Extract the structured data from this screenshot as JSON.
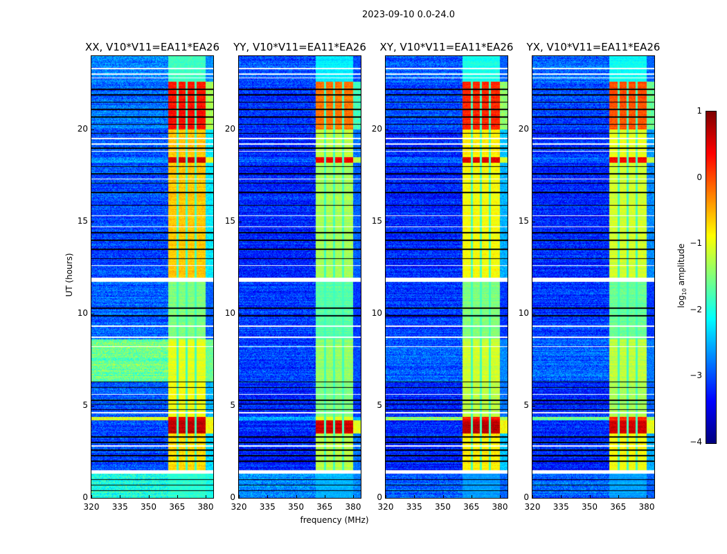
{
  "chart_data": {
    "type": "heatmap",
    "title": "2023-09-10 0.0-24.0",
    "xlabel": "frequency (MHz)",
    "ylabel": "UT (hours)",
    "xlim": [
      320,
      384
    ],
    "ylim": [
      0,
      24
    ],
    "xticks": [
      "320",
      "335",
      "350",
      "365",
      "380"
    ],
    "xtick_values": [
      320,
      335,
      350,
      365,
      380
    ],
    "yticks": [
      "0",
      "5",
      "10",
      "15",
      "20"
    ],
    "ytick_values": [
      0,
      5,
      10,
      15,
      20
    ],
    "colorbar": {
      "label_main": "log",
      "label_sub": "10",
      "label_rest": " amplitude",
      "range": [
        -4,
        1
      ],
      "ticks": [
        "1",
        "0",
        "−1",
        "−2",
        "−3",
        "−4"
      ],
      "tick_values": [
        1,
        0,
        -1,
        -2,
        -3,
        -4
      ],
      "colormap": "jet"
    },
    "rfi_band_mhz": [
      360.5,
      380
    ],
    "channel_edges_mhz": [
      365.2,
      370,
      374.8
    ],
    "flagged_white_hours": [
      [
        1.3,
        1.5
      ],
      [
        11.75,
        11.95
      ],
      [
        2.8,
        2.85
      ],
      [
        4.6,
        4.65
      ],
      [
        5.6,
        5.65
      ],
      [
        8.2,
        8.25
      ],
      [
        8.7,
        8.75
      ],
      [
        9.3,
        9.35
      ],
      [
        12.6,
        12.65
      ],
      [
        14.7,
        14.75
      ],
      [
        15.3,
        15.35
      ],
      [
        17.3,
        17.35
      ],
      [
        18.8,
        18.85
      ],
      [
        19.2,
        19.25
      ],
      [
        19.5,
        19.55
      ],
      [
        22.8,
        22.85
      ],
      [
        23.0,
        23.05
      ],
      [
        23.3,
        23.35
      ]
    ],
    "black_hours": [
      0.4,
      0.7,
      1.0,
      2.0,
      2.3,
      2.6,
      3.0,
      3.3,
      4.8,
      5.1,
      5.3,
      6.0,
      6.3,
      9.9,
      10.3,
      13.0,
      13.5,
      14.0,
      14.4,
      15.9,
      16.6,
      17.1,
      17.6,
      18.0,
      19.0,
      19.8,
      20.3,
      20.7,
      21.1,
      21.5,
      21.9,
      22.2
    ],
    "panels": [
      {
        "title": "XX, V10*V11=EA11*EA26",
        "segments": [
          {
            "t": [
              0,
              1.3
            ],
            "base": -2.0,
            "band": -1.9
          },
          {
            "t": [
              1.5,
              3.5
            ],
            "base": -3.0,
            "band": -0.7
          },
          {
            "t": [
              3.5,
              4.2
            ],
            "base": -3.0,
            "band": 0.7
          },
          {
            "t": [
              4.2,
              4.4
            ],
            "base": -1.0,
            "band": 0.5
          },
          {
            "t": [
              4.4,
              6.3
            ],
            "base": -2.9,
            "band": -0.9
          },
          {
            "t": [
              6.3,
              8.6
            ],
            "base": -1.6,
            "band": -1.0
          },
          {
            "t": [
              8.6,
              11.75
            ],
            "base": -2.9,
            "band": -1.5
          },
          {
            "t": [
              11.95,
              16.2
            ],
            "base": -3.0,
            "band": -0.6
          },
          {
            "t": [
              16.2,
              18.2
            ],
            "base": -3.0,
            "band": -0.6
          },
          {
            "t": [
              18.2,
              18.5
            ],
            "base": -2.6,
            "band": 0.6
          },
          {
            "t": [
              18.5,
              20.0
            ],
            "base": -3.0,
            "band": -0.6
          },
          {
            "t": [
              20.0,
              22.6
            ],
            "base": -2.8,
            "band": 0.3
          },
          {
            "t": [
              22.6,
              24
            ],
            "base": -2.7,
            "band": -1.8
          }
        ]
      },
      {
        "title": "YY, V10*V11=EA11*EA26",
        "segments": [
          {
            "t": [
              0,
              1.3
            ],
            "base": -2.7,
            "band": -2.5
          },
          {
            "t": [
              1.5,
              3.5
            ],
            "base": -3.2,
            "band": -1.2
          },
          {
            "t": [
              3.5,
              4.2
            ],
            "base": -3.2,
            "band": 0.6
          },
          {
            "t": [
              4.2,
              4.4
            ],
            "base": -2.5,
            "band": -1.0
          },
          {
            "t": [
              4.4,
              6.3
            ],
            "base": -3.2,
            "band": -1.5
          },
          {
            "t": [
              6.3,
              8.6
            ],
            "base": -3.1,
            "band": -1.4
          },
          {
            "t": [
              8.6,
              11.75
            ],
            "base": -3.1,
            "band": -1.7
          },
          {
            "t": [
              11.95,
              18.2
            ],
            "base": -3.2,
            "band": -1.3
          },
          {
            "t": [
              18.2,
              18.5
            ],
            "base": -3.0,
            "band": 0.4
          },
          {
            "t": [
              18.5,
              20.0
            ],
            "base": -3.2,
            "band": -1.2
          },
          {
            "t": [
              20.0,
              22.6
            ],
            "base": -3.1,
            "band": -0.2
          },
          {
            "t": [
              22.6,
              24
            ],
            "base": -3.0,
            "band": -2.2
          }
        ]
      },
      {
        "title": "XY, V10*V11=EA11*EA26",
        "segments": [
          {
            "t": [
              0,
              1.3
            ],
            "base": -2.9,
            "band": -2.6
          },
          {
            "t": [
              1.5,
              3.5
            ],
            "base": -3.2,
            "band": -0.8
          },
          {
            "t": [
              3.5,
              4.2
            ],
            "base": -3.2,
            "band": 0.7
          },
          {
            "t": [
              4.2,
              4.4
            ],
            "base": -1.4,
            "band": 0.3
          },
          {
            "t": [
              4.4,
              6.3
            ],
            "base": -3.2,
            "band": -1.2
          },
          {
            "t": [
              6.3,
              8.6
            ],
            "base": -2.9,
            "band": -1.1
          },
          {
            "t": [
              8.6,
              11.75
            ],
            "base": -3.1,
            "band": -1.5
          },
          {
            "t": [
              11.95,
              18.2
            ],
            "base": -3.2,
            "band": -0.9
          },
          {
            "t": [
              18.2,
              18.5
            ],
            "base": -2.9,
            "band": 0.5
          },
          {
            "t": [
              18.5,
              20.0
            ],
            "base": -3.2,
            "band": -0.8
          },
          {
            "t": [
              20.0,
              22.6
            ],
            "base": -3.0,
            "band": 0.2
          },
          {
            "t": [
              22.6,
              24
            ],
            "base": -2.9,
            "band": -2.0
          }
        ]
      },
      {
        "title": "YX, V10*V11=EA11*EA26",
        "segments": [
          {
            "t": [
              0,
              1.3
            ],
            "base": -2.9,
            "band": -2.6
          },
          {
            "t": [
              1.5,
              3.5
            ],
            "base": -3.2,
            "band": -0.9
          },
          {
            "t": [
              3.5,
              4.2
            ],
            "base": -3.2,
            "band": 0.6
          },
          {
            "t": [
              4.2,
              4.4
            ],
            "base": -1.6,
            "band": 0.2
          },
          {
            "t": [
              4.4,
              6.3
            ],
            "base": -3.2,
            "band": -1.3
          },
          {
            "t": [
              6.3,
              8.6
            ],
            "base": -2.9,
            "band": -1.2
          },
          {
            "t": [
              8.6,
              11.75
            ],
            "base": -3.1,
            "band": -1.6
          },
          {
            "t": [
              11.95,
              18.2
            ],
            "base": -3.2,
            "band": -1.1
          },
          {
            "t": [
              18.2,
              18.5
            ],
            "base": -2.9,
            "band": 0.4
          },
          {
            "t": [
              18.5,
              20.0
            ],
            "base": -3.2,
            "band": -1.0
          },
          {
            "t": [
              20.0,
              22.6
            ],
            "base": -3.0,
            "band": 0.0
          },
          {
            "t": [
              22.6,
              24
            ],
            "base": -2.9,
            "band": -2.1
          }
        ]
      }
    ]
  }
}
